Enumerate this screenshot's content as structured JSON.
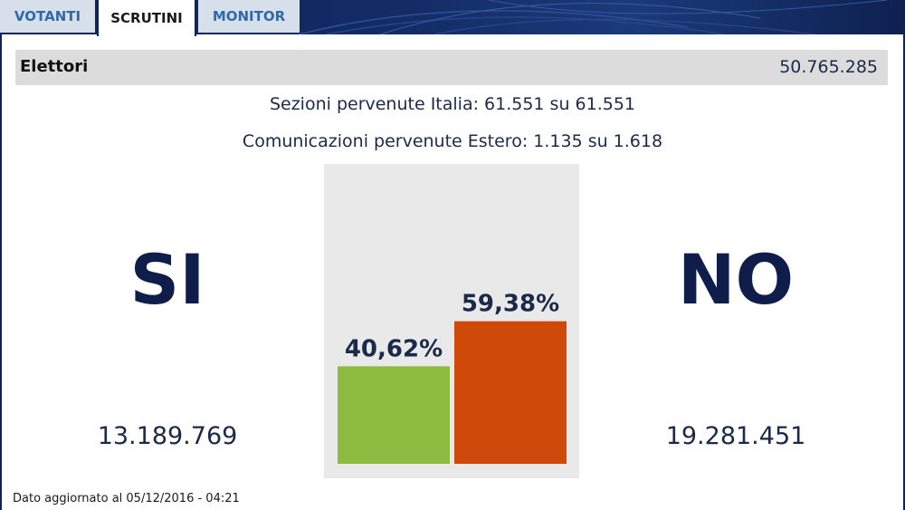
{
  "tabs": [
    {
      "label": "VOTANTI",
      "active": false
    },
    {
      "label": "SCRUTINI",
      "active": true
    },
    {
      "label": "MONITOR",
      "active": false
    }
  ],
  "elettori": {
    "label": "Elettori",
    "value": "50.765.285"
  },
  "info": {
    "sezioni": "Sezioni pervenute Italia: 61.551 su 61.551",
    "comunicazioni": "Comunicazioni pervenute Estero: 1.135 su 1.618"
  },
  "si": {
    "label": "SI",
    "count": "13.189.769"
  },
  "no": {
    "label": "NO",
    "count": "19.281.451"
  },
  "footer": "Dato aggiornato al 05/12/2016 - 04:21",
  "colors": {
    "si_bar": "#8dbb3f",
    "no_bar": "#cf4a0a",
    "panel": "#e9e9e9",
    "header": "#0f2456"
  },
  "chart_data": {
    "type": "bar",
    "categories": [
      "SI",
      "NO"
    ],
    "values": [
      40.62,
      59.38
    ],
    "data_labels": [
      "40,62%",
      "59,38%"
    ],
    "ylim": [
      0,
      100
    ]
  }
}
